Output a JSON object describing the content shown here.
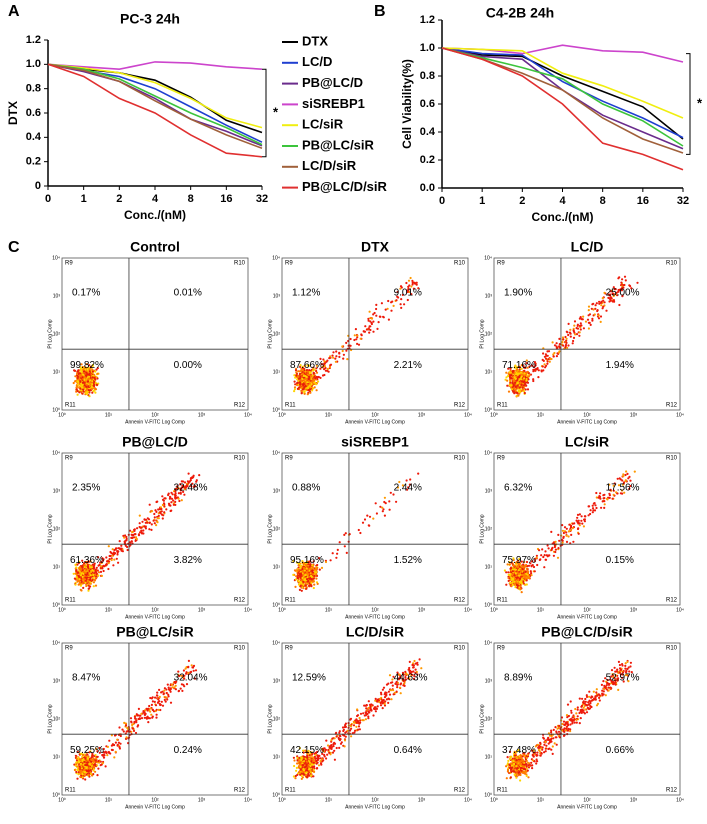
{
  "chart_data": [
    {
      "type": "line",
      "panel_label": "A",
      "title": "PC-3 24h",
      "x_label": "Conc./(nM)",
      "y_label": "DTX",
      "annotation": "*",
      "categories": [
        "0",
        "1",
        "2",
        "4",
        "8",
        "16",
        "32"
      ],
      "ylim": [
        0,
        1.2
      ],
      "yticks": [
        0,
        0.2,
        0.4,
        0.6,
        0.8,
        {
          "value": 1,
          "label": "1.0"
        },
        1.2
      ],
      "series": [
        {
          "name": "DTX",
          "color": "#000000",
          "values": [
            1,
            0.96,
            0.93,
            0.87,
            0.73,
            0.54,
            0.44
          ]
        },
        {
          "name": "LC/D",
          "color": "#1f3fd0",
          "values": [
            1,
            0.95,
            0.9,
            0.8,
            0.65,
            0.5,
            0.36
          ]
        },
        {
          "name": "PB@LC/D",
          "color": "#6a2c8c",
          "values": [
            1,
            0.94,
            0.86,
            0.72,
            0.55,
            0.45,
            0.33
          ]
        },
        {
          "name": "siSREBP1",
          "color": "#cc44cc",
          "values": [
            1,
            0.98,
            0.96,
            1.02,
            1.01,
            0.98,
            0.96
          ]
        },
        {
          "name": "LC/siR",
          "color": "#f0ee10",
          "values": [
            1,
            0.97,
            0.93,
            0.85,
            0.72,
            0.56,
            0.48
          ]
        },
        {
          "name": "PB@LC/siR",
          "color": "#3cc43c",
          "values": [
            1,
            0.96,
            0.88,
            0.74,
            0.6,
            0.48,
            0.34
          ]
        },
        {
          "name": "LC/D/siR",
          "color": "#a0603a",
          "values": [
            1,
            0.95,
            0.86,
            0.7,
            0.55,
            0.42,
            0.31
          ]
        },
        {
          "name": "PB@LC/D/siR",
          "color": "#e03030",
          "values": [
            1,
            0.9,
            0.72,
            0.6,
            0.42,
            0.27,
            0.24
          ]
        }
      ]
    },
    {
      "type": "line",
      "panel_label": "B",
      "title": "C4-2B 24h",
      "x_label": "Conc./(nM)",
      "y_label": "Cell Viability(%)",
      "annotation": "*",
      "categories": [
        "0",
        "1",
        "2",
        "4",
        "8",
        "16",
        "32"
      ],
      "ylim": [
        0,
        1.2
      ],
      "yticks": [
        {
          "value": 0,
          "label": "0.0"
        },
        0.2,
        0.4,
        0.6,
        0.8,
        {
          "value": 1,
          "label": "1.0"
        },
        1.2
      ],
      "series": [
        {
          "color": "#000000",
          "values": [
            1,
            0.95,
            0.94,
            0.8,
            0.69,
            0.58,
            0.35
          ]
        },
        {
          "color": "#1f3fd0",
          "values": [
            1,
            0.96,
            0.95,
            0.76,
            0.62,
            0.5,
            0.36
          ]
        },
        {
          "color": "#6a2c8c",
          "values": [
            1,
            0.94,
            0.92,
            0.7,
            0.52,
            0.4,
            0.28
          ]
        },
        {
          "color": "#cc44cc",
          "values": [
            1,
            0.99,
            0.96,
            1.02,
            0.98,
            0.97,
            0.9
          ]
        },
        {
          "color": "#f0ee10",
          "values": [
            1,
            0.99,
            0.98,
            0.82,
            0.73,
            0.62,
            0.5
          ]
        },
        {
          "color": "#3cc43c",
          "values": [
            1,
            0.93,
            0.86,
            0.78,
            0.6,
            0.48,
            0.3
          ]
        },
        {
          "color": "#a0603a",
          "values": [
            1,
            0.92,
            0.82,
            0.7,
            0.5,
            0.35,
            0.25
          ]
        },
        {
          "color": "#e03030",
          "values": [
            1,
            0.92,
            0.8,
            0.6,
            0.32,
            0.24,
            0.13
          ]
        }
      ]
    }
  ],
  "flow_cytometry": {
    "label": "C",
    "x_axis_label": "Annexin V-FITC Log Comp",
    "y_axis_label": "PI Log Comp",
    "ticks": [
      "10⁰",
      "10¹",
      "10²",
      "10³",
      "10⁴"
    ],
    "regions": [
      "R9",
      "R10",
      "R11",
      "R12"
    ],
    "panels": [
      {
        "title": "Control",
        "upper_left": "0.17%",
        "upper_right": "0.01%",
        "lower_left": "99.82%",
        "lower_right": "0.00%"
      },
      {
        "title": "DTX",
        "upper_left": "1.12%",
        "upper_right": "9.01%",
        "lower_left": "87.66%",
        "lower_right": "2.21%"
      },
      {
        "title": "LC/D",
        "upper_left": "1.90%",
        "upper_right": "25.00%",
        "lower_left": "71.16%",
        "lower_right": "1.94%"
      },
      {
        "title": "PB@LC/D",
        "upper_left": "2.35%",
        "upper_right": "32.48%",
        "lower_left": "61.36%",
        "lower_right": "3.82%"
      },
      {
        "title": "siSREBP1",
        "upper_left": "0.88%",
        "upper_right": "2.44%",
        "lower_left": "95.16%",
        "lower_right": "1.52%"
      },
      {
        "title": "LC/siR",
        "upper_left": "6.32%",
        "upper_right": "17.56%",
        "lower_left": "75.97%",
        "lower_right": "0.15%"
      },
      {
        "title": "PB@LC/siR",
        "upper_left": "8.47%",
        "upper_right": "32.04%",
        "lower_left": "59.25%",
        "lower_right": "0.24%"
      },
      {
        "title": "LC/D/siR",
        "upper_left": "12.59%",
        "upper_right": "44.63%",
        "lower_left": "42.15%",
        "lower_right": "0.64%"
      },
      {
        "title": "PB@LC/D/siR",
        "upper_left": "8.89%",
        "upper_right": "52.97%",
        "lower_left": "37.48%",
        "lower_right": "0.66%"
      }
    ]
  }
}
